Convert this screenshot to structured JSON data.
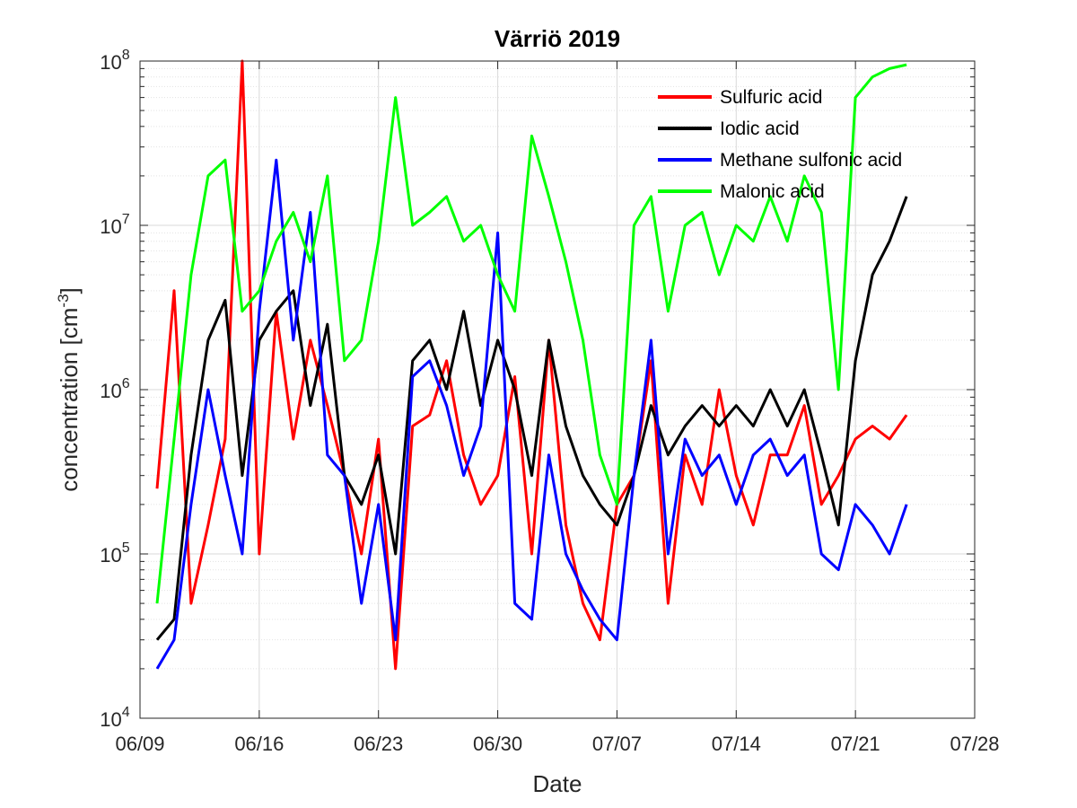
{
  "chart_data": {
    "type": "line",
    "title": "Värriö 2019",
    "xlabel": "Date",
    "ylabel": {
      "main": "concentration [cm",
      "sup": "-3",
      "end": "]"
    },
    "yscale": "log",
    "ylim": [
      10000,
      100000000
    ],
    "xlim": [
      "06/09",
      "07/28"
    ],
    "xticks": [
      "06/09",
      "06/16",
      "06/23",
      "06/30",
      "07/07",
      "07/14",
      "07/21",
      "07/28"
    ],
    "yticks": [
      {
        "base": "10",
        "exp": "4"
      },
      {
        "base": "10",
        "exp": "5"
      },
      {
        "base": "10",
        "exp": "6"
      },
      {
        "base": "10",
        "exp": "7"
      },
      {
        "base": "10",
        "exp": "8"
      }
    ],
    "grid": true,
    "legend_position": "top-right",
    "series": [
      {
        "name": "Sulfuric acid",
        "color": "#ff0000",
        "x": [
          "06/10",
          "06/11",
          "06/12",
          "06/13",
          "06/14",
          "06/15",
          "06/16",
          "06/17",
          "06/18",
          "06/19",
          "06/20",
          "06/21",
          "06/22",
          "06/23",
          "06/24",
          "06/25",
          "06/26",
          "06/27",
          "06/28",
          "06/29",
          "06/30",
          "07/01",
          "07/02",
          "07/03",
          "07/04",
          "07/05",
          "07/06",
          "07/07",
          "07/08",
          "07/09",
          "07/10",
          "07/11",
          "07/12",
          "07/13",
          "07/14",
          "07/15",
          "07/16",
          "07/17",
          "07/18",
          "07/19",
          "07/20",
          "07/21",
          "07/22",
          "07/23",
          "07/24"
        ],
        "y": [
          250000,
          4000000,
          50000,
          150000,
          500000,
          100000000,
          100000,
          3000000,
          500000,
          2000000,
          800000,
          300000,
          100000,
          500000,
          20000,
          600000,
          700000,
          1500000,
          400000,
          200000,
          300000,
          1200000,
          100000,
          2000000,
          150000,
          50000,
          30000,
          200000,
          300000,
          1500000,
          50000,
          400000,
          200000,
          1000000,
          300000,
          150000,
          400000,
          400000,
          800000,
          200000,
          300000,
          500000,
          600000,
          500000,
          700000
        ]
      },
      {
        "name": "Iodic acid",
        "color": "#000000",
        "x": [
          "06/10",
          "06/11",
          "06/12",
          "06/13",
          "06/14",
          "06/15",
          "06/16",
          "06/17",
          "06/18",
          "06/19",
          "06/20",
          "06/21",
          "06/22",
          "06/23",
          "06/24",
          "06/25",
          "06/26",
          "06/27",
          "06/28",
          "06/29",
          "06/30",
          "07/01",
          "07/02",
          "07/03",
          "07/04",
          "07/05",
          "07/06",
          "07/07",
          "07/08",
          "07/09",
          "07/10",
          "07/11",
          "07/12",
          "07/13",
          "07/14",
          "07/15",
          "07/16",
          "07/17",
          "07/18",
          "07/19",
          "07/20",
          "07/21",
          "07/22",
          "07/23",
          "07/24"
        ],
        "y": [
          30000,
          40000,
          400000,
          2000000,
          3500000,
          300000,
          2000000,
          3000000,
          4000000,
          800000,
          2500000,
          300000,
          200000,
          400000,
          100000,
          1500000,
          2000000,
          1000000,
          3000000,
          800000,
          2000000,
          1000000,
          300000,
          2000000,
          600000,
          300000,
          200000,
          150000,
          300000,
          800000,
          400000,
          600000,
          800000,
          600000,
          800000,
          600000,
          1000000,
          600000,
          1000000,
          400000,
          150000,
          1500000,
          5000000,
          8000000,
          15000000
        ]
      },
      {
        "name": "Methane sulfonic acid",
        "color": "#0000ff",
        "x": [
          "06/10",
          "06/11",
          "06/12",
          "06/13",
          "06/14",
          "06/15",
          "06/16",
          "06/17",
          "06/18",
          "06/19",
          "06/20",
          "06/21",
          "06/22",
          "06/23",
          "06/24",
          "06/25",
          "06/26",
          "06/27",
          "06/28",
          "06/29",
          "06/30",
          "07/01",
          "07/02",
          "07/03",
          "07/04",
          "07/05",
          "07/06",
          "07/07",
          "07/08",
          "07/09",
          "07/10",
          "07/11",
          "07/12",
          "07/13",
          "07/14",
          "07/15",
          "07/16",
          "07/17",
          "07/18",
          "07/19",
          "07/20",
          "07/21",
          "07/22",
          "07/23",
          "07/24"
        ],
        "y": [
          20000,
          30000,
          200000,
          1000000,
          300000,
          100000,
          3000000,
          25000000,
          2000000,
          12000000,
          400000,
          300000,
          50000,
          200000,
          30000,
          1200000,
          1500000,
          800000,
          300000,
          600000,
          9000000,
          50000,
          40000,
          400000,
          100000,
          60000,
          40000,
          30000,
          300000,
          2000000,
          100000,
          500000,
          300000,
          400000,
          200000,
          400000,
          500000,
          300000,
          400000,
          100000,
          80000,
          200000,
          150000,
          100000,
          200000
        ]
      },
      {
        "name": "Malonic acid",
        "color": "#00ff00",
        "x": [
          "06/10",
          "06/11",
          "06/12",
          "06/13",
          "06/14",
          "06/15",
          "06/16",
          "06/17",
          "06/18",
          "06/19",
          "06/20",
          "06/21",
          "06/22",
          "06/23",
          "06/24",
          "06/25",
          "06/26",
          "06/27",
          "06/28",
          "06/29",
          "06/30",
          "07/01",
          "07/02",
          "07/03",
          "07/04",
          "07/05",
          "07/06",
          "07/07",
          "07/08",
          "07/09",
          "07/10",
          "07/11",
          "07/12",
          "07/13",
          "07/14",
          "07/15",
          "07/16",
          "07/17",
          "07/18",
          "07/19",
          "07/20",
          "07/21",
          "07/22",
          "07/23",
          "07/24"
        ],
        "y": [
          50000,
          500000,
          5000000,
          20000000,
          25000000,
          3000000,
          4000000,
          8000000,
          12000000,
          6000000,
          20000000,
          1500000,
          2000000,
          8000000,
          60000000,
          10000000,
          12000000,
          15000000,
          8000000,
          10000000,
          5000000,
          3000000,
          35000000,
          15000000,
          6000000,
          2000000,
          400000,
          200000,
          10000000,
          15000000,
          3000000,
          10000000,
          12000000,
          5000000,
          10000000,
          8000000,
          15000000,
          8000000,
          20000000,
          12000000,
          1000000,
          60000000,
          80000000,
          90000000,
          95000000
        ]
      }
    ]
  }
}
